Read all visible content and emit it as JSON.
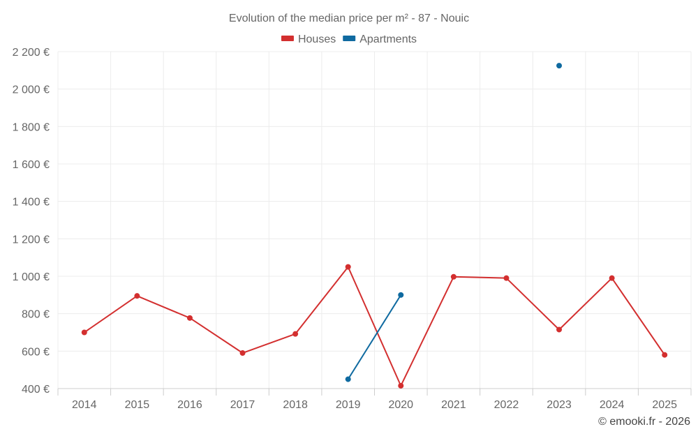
{
  "chart_data": {
    "type": "line",
    "title": "Evolution of the median price per m² - 87 - Nouic",
    "xlabel": "",
    "ylabel": "",
    "categories": [
      "2014",
      "2015",
      "2016",
      "2017",
      "2018",
      "2019",
      "2020",
      "2021",
      "2022",
      "2023",
      "2024",
      "2025"
    ],
    "ylim": [
      400,
      2200
    ],
    "yticks": [
      400,
      600,
      800,
      1000,
      1200,
      1400,
      1600,
      1800,
      2000,
      2200
    ],
    "ytick_labels": [
      "400 €",
      "600 €",
      "800 €",
      "1 000 €",
      "1 200 €",
      "1 400 €",
      "1 600 €",
      "1 800 €",
      "2 000 €",
      "2 200 €"
    ],
    "legend_position": "top-center",
    "grid": true,
    "series": [
      {
        "name": "Houses",
        "color": "#d32f2f",
        "values": [
          700,
          895,
          777,
          590,
          692,
          1050,
          415,
          997,
          990,
          715,
          990,
          580
        ]
      },
      {
        "name": "Apartments",
        "color": "#0f6aa0",
        "values": [
          null,
          null,
          null,
          null,
          null,
          450,
          900,
          null,
          null,
          2125,
          null,
          null
        ]
      }
    ]
  },
  "credit": "© emooki.fr - 2026"
}
